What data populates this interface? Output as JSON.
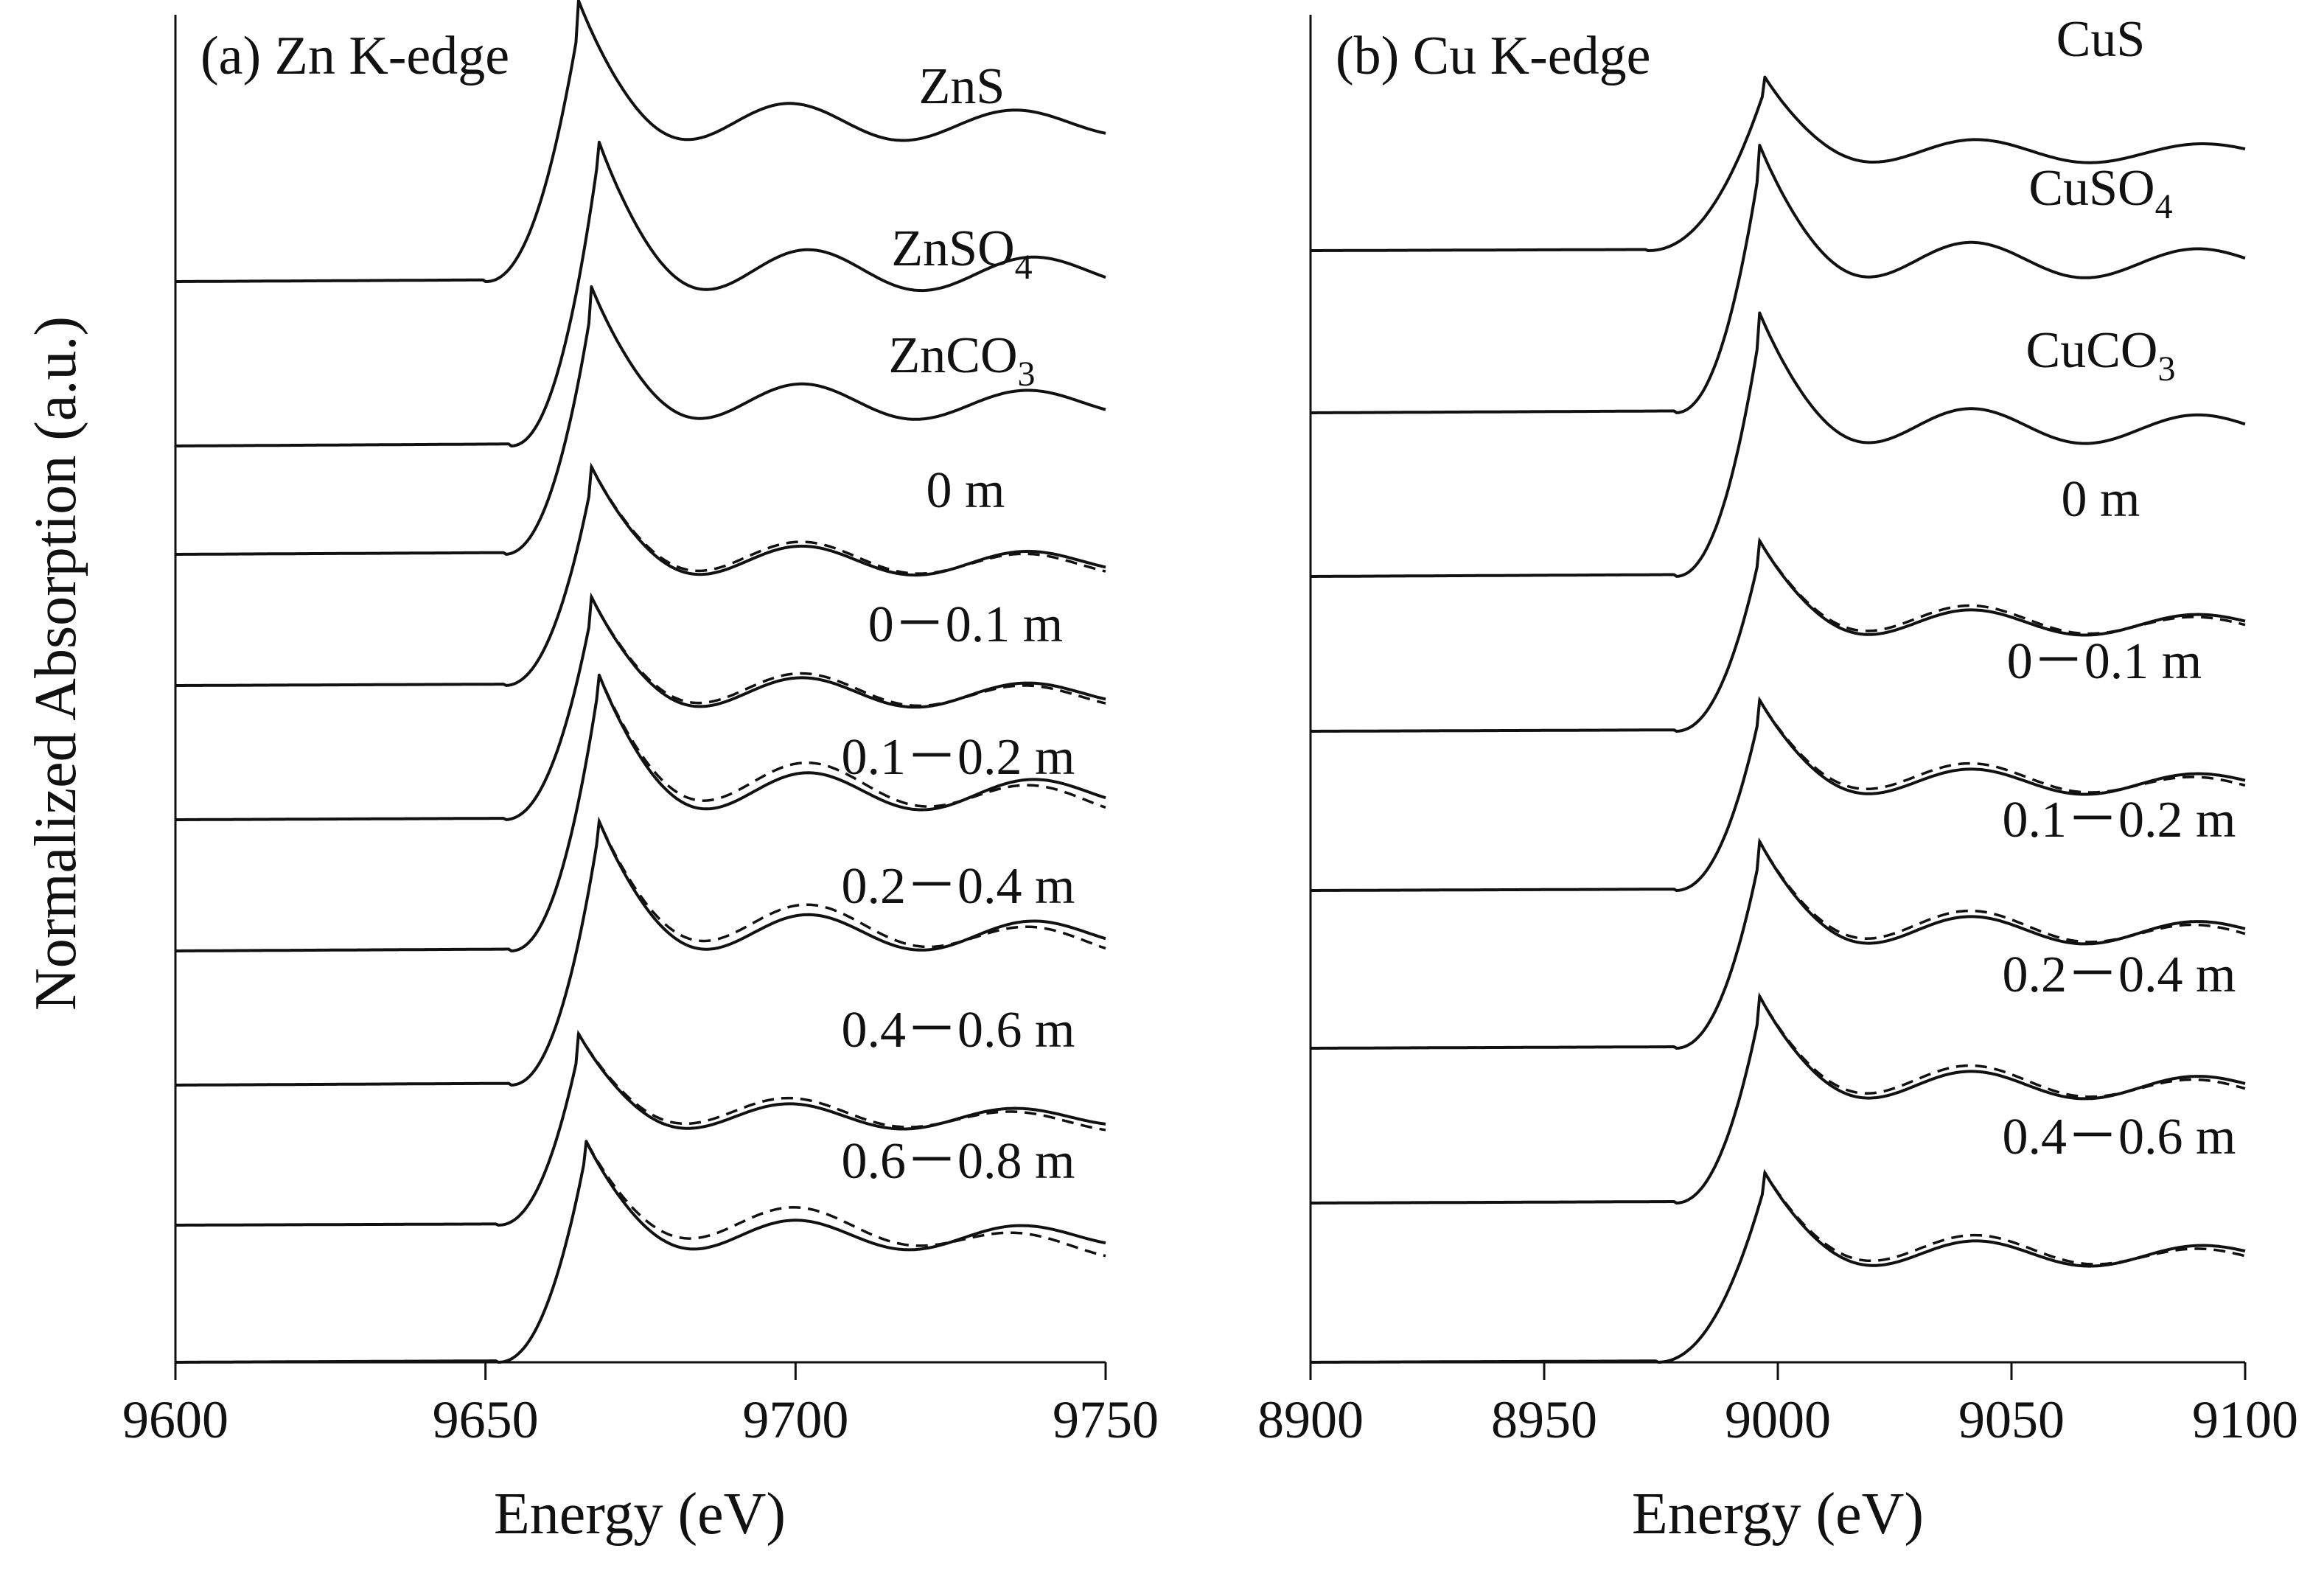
{
  "chart_data": [
    {
      "type": "line",
      "title": "(a) Zn K-edge",
      "xlabel": "Energy (eV)",
      "ylabel": "Normalized Absorption (a.u.)",
      "xlim": [
        9600,
        9750
      ],
      "xticks": [
        "9600",
        "9650",
        "9700",
        "9750"
      ],
      "edge_energy": 9662,
      "series": [
        {
          "name": "ZnS",
          "label_main": "ZnS",
          "label_sub": "",
          "peak_energy": 9665,
          "edge_energy": 9659,
          "dashed_fit": false
        },
        {
          "name": "ZnSO4",
          "label_main": "ZnSO",
          "label_sub": "4",
          "peak_energy": 9668,
          "edge_energy": 9663,
          "dashed_fit": false
        },
        {
          "name": "ZnCO3",
          "label_main": "ZnCO",
          "label_sub": "3",
          "peak_energy": 9667,
          "edge_energy": 9662,
          "dashed_fit": false
        },
        {
          "name": "0 m",
          "label_main": "0 m",
          "label_sub": "",
          "peak_energy": 9667,
          "edge_energy": 9662,
          "dashed_fit": true
        },
        {
          "name": "0－0.1 m",
          "label_main": "0－0.1 m",
          "label_sub": "",
          "peak_energy": 9667,
          "edge_energy": 9662,
          "dashed_fit": true
        },
        {
          "name": "0.1－0.2 m",
          "label_main": "0.1－0.2 m",
          "label_sub": "",
          "peak_energy": 9668,
          "edge_energy": 9663,
          "dashed_fit": true
        },
        {
          "name": "0.2－0.4 m",
          "label_main": "0.2－0.4 m",
          "label_sub": "",
          "peak_energy": 9668,
          "edge_energy": 9663,
          "dashed_fit": true
        },
        {
          "name": "0.4－0.6 m",
          "label_main": "0.4－0.6 m",
          "label_sub": "",
          "peak_energy": 9665,
          "edge_energy": 9661,
          "dashed_fit": true
        },
        {
          "name": "0.6－0.8 m",
          "label_main": "0.6－0.8 m",
          "label_sub": "",
          "peak_energy": 9666,
          "edge_energy": 9661,
          "dashed_fit": true
        }
      ]
    },
    {
      "type": "line",
      "title": "(b) Cu K-edge",
      "xlabel": "Energy (eV)",
      "ylabel": "",
      "xlim": [
        8900,
        9100
      ],
      "xticks": [
        "8900",
        "8950",
        "9000",
        "9050",
        "9100"
      ],
      "edge_energy": 8990,
      "series": [
        {
          "name": "CuS",
          "label_main": "CuS",
          "label_sub": "",
          "peak_energy": 8997,
          "edge_energy": 8984,
          "dashed_fit": false
        },
        {
          "name": "CuSO4",
          "label_main": "CuSO",
          "label_sub": "4",
          "peak_energy": 8996,
          "edge_energy": 8990,
          "dashed_fit": false
        },
        {
          "name": "CuCO3",
          "label_main": "CuCO",
          "label_sub": "3",
          "peak_energy": 8996,
          "edge_energy": 8990,
          "dashed_fit": false
        },
        {
          "name": "0 m",
          "label_main": "0 m",
          "label_sub": "",
          "peak_energy": 8996,
          "edge_energy": 8990,
          "dashed_fit": true
        },
        {
          "name": "0－0.1 m",
          "label_main": "0－0.1 m",
          "label_sub": "",
          "peak_energy": 8996,
          "edge_energy": 8990,
          "dashed_fit": true
        },
        {
          "name": "0.1－0.2 m",
          "label_main": "0.1－0.2 m",
          "label_sub": "",
          "peak_energy": 8996,
          "edge_energy": 8990,
          "dashed_fit": true
        },
        {
          "name": "0.2－0.4 m",
          "label_main": "0.2－0.4 m",
          "label_sub": "",
          "peak_energy": 8996,
          "edge_energy": 8990,
          "dashed_fit": true
        },
        {
          "name": "0.4－0.6 m",
          "label_main": "0.4－0.6 m",
          "label_sub": "",
          "peak_energy": 8997,
          "edge_energy": 8986,
          "dashed_fit": true
        }
      ]
    }
  ]
}
